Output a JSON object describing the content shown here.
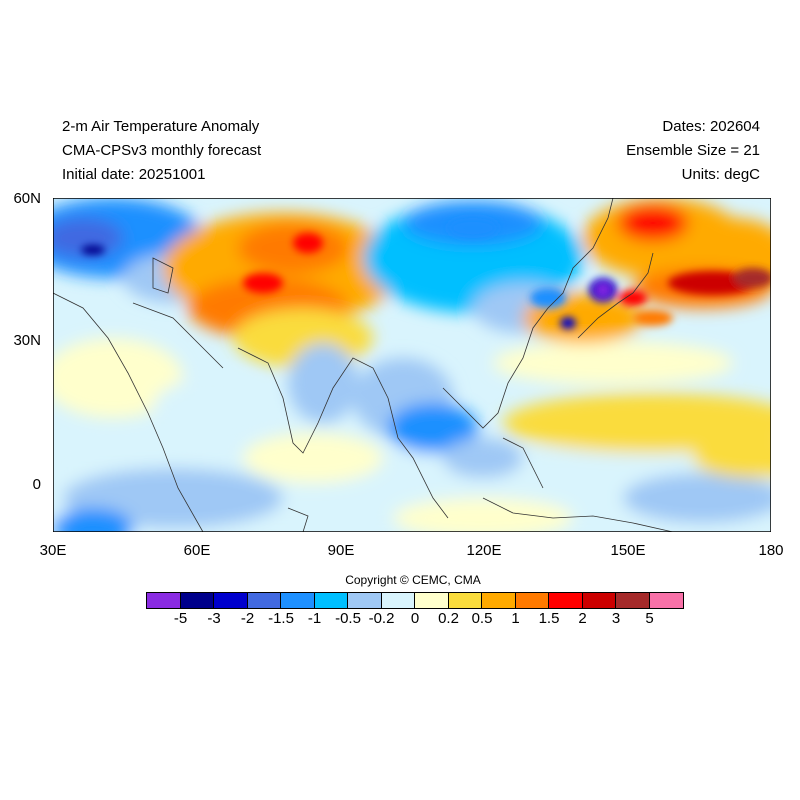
{
  "header": {
    "title": "2-m Air Temperature Anomaly",
    "subtitle": "CMA-CPSv3 monthly forecast",
    "initial_date": "Initial date: 20251001",
    "dates": "Dates: 202604",
    "ensemble": "Ensemble Size = 21",
    "units": "Units: degC"
  },
  "axes": {
    "lat_labels": [
      "60N",
      "30N",
      "0"
    ],
    "lon_labels": [
      "30E",
      "60E",
      "90E",
      "120E",
      "150E",
      "180"
    ]
  },
  "copyright": "Copyright © CEMC, CMA",
  "colorbar": {
    "colors": [
      "#8a2be2",
      "#00008b",
      "#0000cd",
      "#4169e1",
      "#1e90ff",
      "#00bfff",
      "#9fc8f5",
      "#d9f4fd",
      "#ffffcc",
      "#fadc3c",
      "#ffaa00",
      "#ff7a00",
      "#ff0000",
      "#cc0000",
      "#a52a2a",
      "#f871a8"
    ],
    "labels": [
      "-5",
      "-3",
      "-2",
      "-1.5",
      "-1",
      "-0.5",
      "-0.2",
      "0",
      "0.2",
      "0.5",
      "1",
      "1.5",
      "2",
      "3",
      "5"
    ]
  }
}
